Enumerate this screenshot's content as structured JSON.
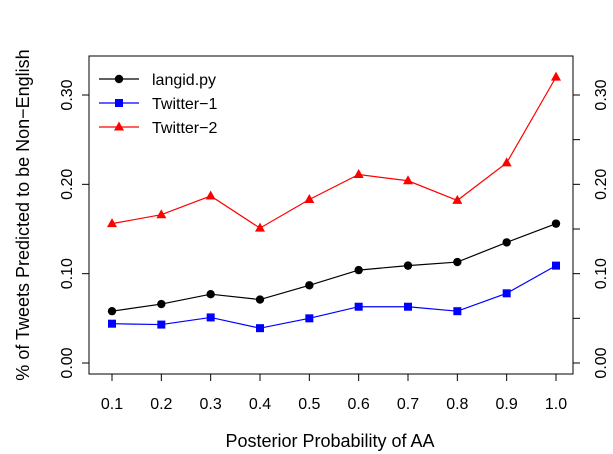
{
  "chart_data": {
    "type": "line",
    "title": "",
    "xlabel": "Posterior Probability of AA",
    "ylabel": "% of Tweets Predicted to be Non−English",
    "categories": [
      "0.1",
      "0.2",
      "0.3",
      "0.4",
      "0.5",
      "0.6",
      "0.7",
      "0.8",
      "0.9",
      "1.0"
    ],
    "x": [
      0.1,
      0.2,
      0.3,
      0.4,
      0.5,
      0.6,
      0.7,
      0.8,
      0.9,
      1.0
    ],
    "ylim": [
      0.0,
      0.32
    ],
    "y_ticks": [
      0.0,
      0.1,
      0.2,
      0.3
    ],
    "y_tick_labels": [
      "0.00",
      "0.10",
      "0.20",
      "0.30"
    ],
    "right_axis_ticks": [
      0.0,
      0.05,
      0.1,
      0.15,
      0.2,
      0.25,
      0.3
    ],
    "right_axis_labels": [
      "0.00",
      "",
      "0.10",
      "",
      "0.20",
      "",
      "0.30"
    ],
    "legend_position": "top-left",
    "grid": false,
    "series": [
      {
        "name": "langid.py",
        "color": "#000000",
        "marker": "circle",
        "values": [
          0.058,
          0.066,
          0.077,
          0.071,
          0.087,
          0.104,
          0.109,
          0.113,
          0.135,
          0.156
        ]
      },
      {
        "name": "Twitter−1",
        "color": "#0000ff",
        "marker": "square",
        "values": [
          0.044,
          0.043,
          0.051,
          0.039,
          0.05,
          0.063,
          0.063,
          0.058,
          0.078,
          0.109
        ]
      },
      {
        "name": "Twitter−2",
        "color": "#ff0000",
        "marker": "triangle",
        "values": [
          0.156,
          0.166,
          0.187,
          0.151,
          0.183,
          0.211,
          0.204,
          0.182,
          0.224,
          0.32
        ]
      }
    ]
  }
}
